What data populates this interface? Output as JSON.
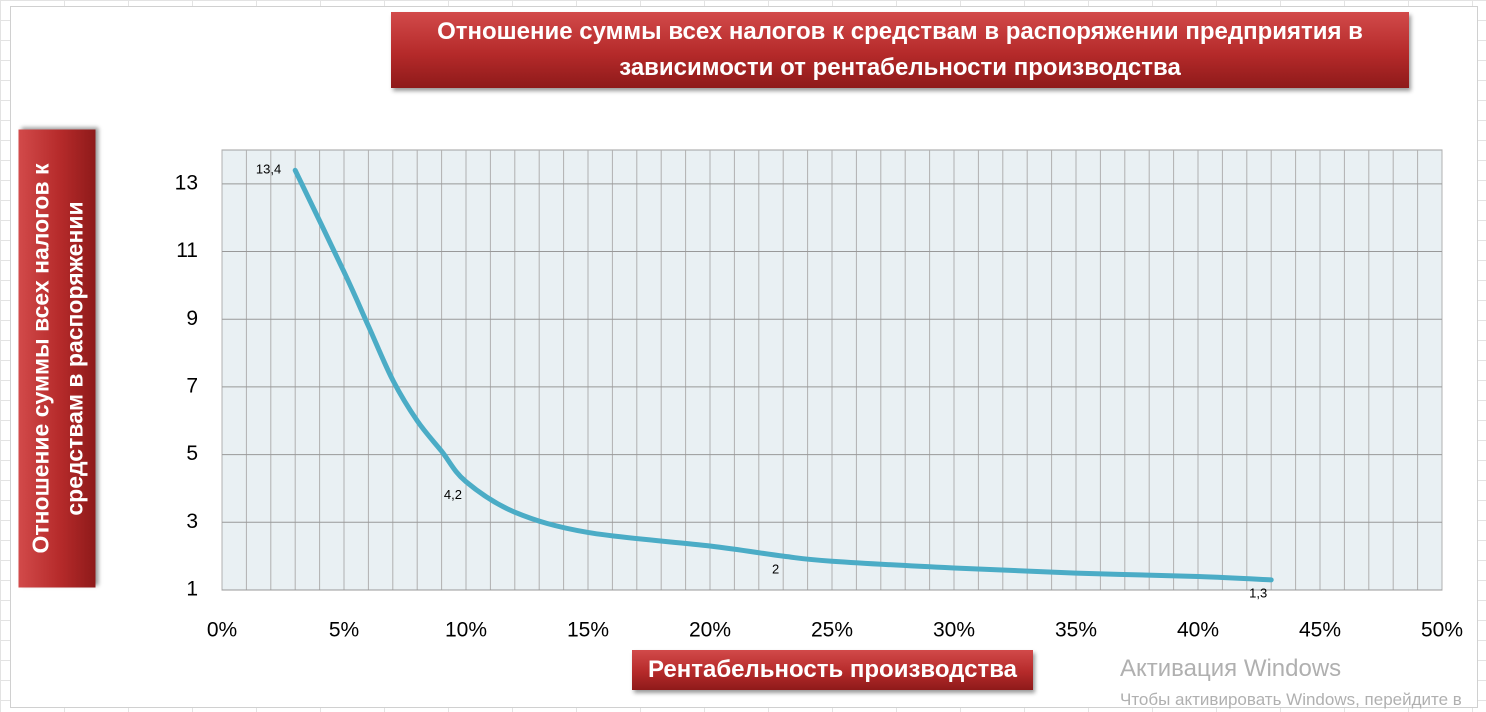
{
  "chart_data": {
    "type": "line",
    "title": "Отношение суммы всех налогов к средствам в распоряжении предприятия в зависимости от рентабельности производства",
    "x_label": "Рентабельность производства",
    "y_label": "Отношение суммы всех налогов  к средствам в распоряжении",
    "x": [
      3,
      5,
      6,
      7,
      8,
      9,
      10,
      12,
      15,
      20,
      23,
      25,
      30,
      35,
      40,
      43
    ],
    "series": [
      {
        "name": "Отношение",
        "color": "#4bacc6",
        "values": [
          13.4,
          10.4,
          8.8,
          7.2,
          6.0,
          5.1,
          4.2,
          3.3,
          2.7,
          2.3,
          2,
          1.85,
          1.65,
          1.5,
          1.4,
          1.3
        ],
        "value_labels": [
          "13,4",
          null,
          null,
          null,
          null,
          null,
          "4,2",
          null,
          null,
          null,
          "2",
          null,
          null,
          null,
          null,
          "1,3"
        ]
      }
    ],
    "xlim": [
      0,
      50
    ],
    "xticks": [
      {
        "value": 0,
        "label": "0%"
      },
      {
        "value": 5,
        "label": "5%"
      },
      {
        "value": 10,
        "label": "10%"
      },
      {
        "value": 15,
        "label": "15%"
      },
      {
        "value": 20,
        "label": "20%"
      },
      {
        "value": 25,
        "label": "25%"
      },
      {
        "value": 30,
        "label": "30%"
      },
      {
        "value": 35,
        "label": "35%"
      },
      {
        "value": 40,
        "label": "40%"
      },
      {
        "value": 45,
        "label": "45%"
      },
      {
        "value": 50,
        "label": "50%"
      }
    ],
    "x_minor_ticks": [
      0,
      1,
      2,
      3,
      4,
      5,
      6,
      7,
      8,
      9,
      10,
      11,
      12,
      13,
      14,
      15,
      16,
      17,
      18,
      19,
      20,
      21,
      22,
      23,
      24,
      25,
      26,
      27,
      28,
      29,
      30,
      31,
      32,
      33,
      34,
      35,
      36,
      37,
      38,
      39,
      40,
      41,
      42,
      43,
      44,
      45,
      46,
      47,
      48,
      49,
      50
    ],
    "ylim": [
      1,
      14
    ],
    "yticks": [
      1,
      3,
      5,
      7,
      9,
      11,
      13
    ],
    "grid": true
  },
  "watermark": {
    "title": "Активация Windows",
    "text": "Чтобы активировать Windows, перейдите в"
  }
}
